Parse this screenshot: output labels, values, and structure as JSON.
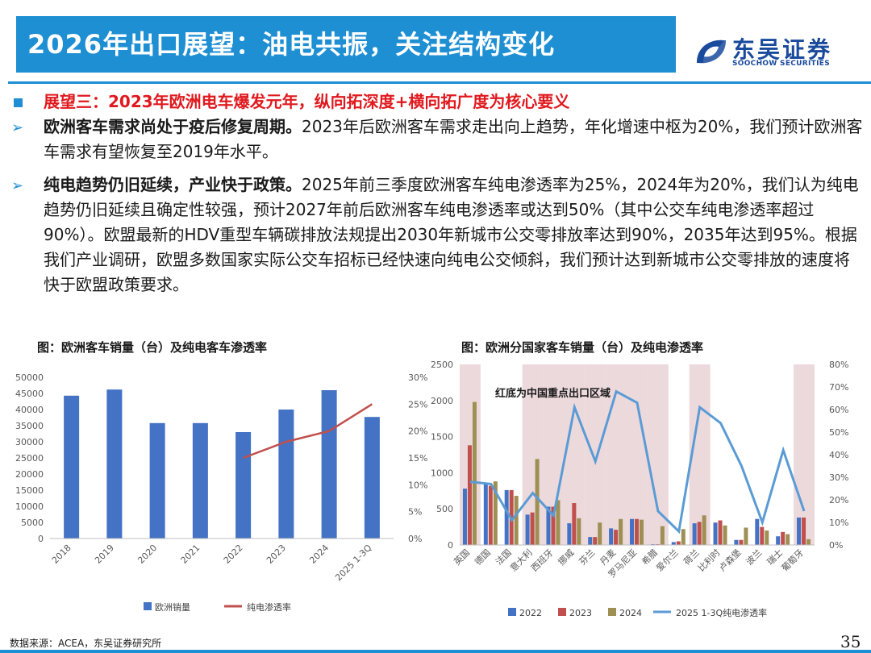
{
  "header": {
    "title": "2026年出口展望：油电共振，关注结构变化",
    "logo_cn": "东吴证券",
    "logo_en": "SOOCHOW SECURITIES"
  },
  "outlook": {
    "headline": "展望三：2023年欧洲电车爆发元年，纵向拓深度+横向拓广度为核心要义",
    "bullets": [
      {
        "lead": "欧洲客车需求尚处于疫后修复周期。",
        "body": "2023年后欧洲客车需求走出向上趋势，年化增速中枢为20%，我们预计欧洲客车需求有望恢复至2019年水平。"
      },
      {
        "lead": "纯电趋势仍旧延续，产业快于政策。",
        "body": "2025年前三季度欧洲客车纯电渗透率为25%，2024年为20%，我们认为纯电趋势仍旧延续且确定性较强，预计2027年前后欧洲客车纯电渗透率或达到50%（其中公交车纯电渗透率超过90%）。欧盟最新的HDV重型车辆碳排放法规提出2030年新城市公交零排放率达到90%，2035年达到95%。根据我们产业调研，欧盟多数国家实际公交车招标已经快速向纯电公交倾斜，我们预计达到新城市公交零排放的速度将快于欧盟政策要求。"
      }
    ]
  },
  "chart_data": [
    {
      "type": "bar",
      "title": "图：欧洲客车销量（台）及纯电客车渗透率",
      "categories": [
        "2018",
        "2019",
        "2020",
        "2021",
        "2022",
        "2023",
        "2024",
        "2025 1-3Q"
      ],
      "series": [
        {
          "name": "欧洲销量",
          "type": "bar",
          "axis": "left",
          "color": "#4472c4",
          "values": [
            44300,
            46200,
            35800,
            35800,
            33000,
            40000,
            46000,
            37700
          ]
        },
        {
          "name": "纯电渗透率",
          "type": "line",
          "axis": "right",
          "color": "#c0504d",
          "values": [
            null,
            null,
            null,
            null,
            0.15,
            0.18,
            0.2,
            0.25
          ]
        }
      ],
      "ylim": [
        0,
        50000
      ],
      "yticks": [
        "0",
        "5000",
        "10000",
        "15000",
        "20000",
        "25000",
        "30000",
        "35000",
        "40000",
        "45000",
        "50000"
      ],
      "y2lim": [
        0,
        0.3
      ],
      "y2ticks": [
        "0%",
        "5%",
        "10%",
        "15%",
        "20%",
        "25%",
        "30%"
      ],
      "grid": false,
      "legend_position": "bottom"
    },
    {
      "type": "bar",
      "title": "图：欧洲分国家客车销量（台）及纯电渗透率",
      "annotation": "红底为中国重点出口区域",
      "categories": [
        "英国",
        "德国",
        "法国",
        "意大利",
        "西班牙",
        "挪威",
        "芬兰",
        "丹麦",
        "罗马尼亚",
        "希腊",
        "爱尔兰",
        "荷兰",
        "比利时",
        "卢森堡",
        "波兰",
        "瑞士",
        "葡萄牙"
      ],
      "highlighted_categories": [
        "英国",
        "意大利",
        "西班牙",
        "挪威",
        "芬兰",
        "丹麦",
        "罗马尼亚",
        "希腊",
        "荷兰",
        "葡萄牙"
      ],
      "series": [
        {
          "name": "2022",
          "type": "bar",
          "axis": "left",
          "color": "#4472c4",
          "values": [
            780,
            850,
            760,
            420,
            530,
            300,
            110,
            230,
            360,
            10,
            40,
            300,
            310,
            70,
            360,
            120,
            380
          ]
        },
        {
          "name": "2023",
          "type": "bar",
          "axis": "left",
          "color": "#c0504d",
          "values": [
            1380,
            820,
            760,
            450,
            530,
            580,
            110,
            210,
            360,
            10,
            50,
            320,
            340,
            70,
            250,
            180,
            380
          ]
        },
        {
          "name": "2024",
          "type": "bar",
          "axis": "left",
          "color": "#9e8f53",
          "values": [
            1980,
            880,
            680,
            1190,
            620,
            370,
            310,
            360,
            350,
            260,
            220,
            410,
            270,
            240,
            200,
            150,
            80
          ]
        },
        {
          "name": "2025 1-3Q纯电渗透率",
          "type": "line",
          "axis": "right",
          "color": "#5b9bd5",
          "values": [
            0.28,
            0.27,
            0.11,
            0.23,
            0.13,
            0.61,
            0.37,
            0.68,
            0.63,
            0.15,
            0.06,
            0.61,
            0.54,
            0.35,
            0.1,
            0.42,
            0.15
          ]
        }
      ],
      "ylim": [
        0,
        2500
      ],
      "yticks": [
        "0",
        "500",
        "1000",
        "1500",
        "2000",
        "2500"
      ],
      "y2lim": [
        0,
        0.8
      ],
      "y2ticks": [
        "0%",
        "10%",
        "20%",
        "30%",
        "40%",
        "50%",
        "60%",
        "70%",
        "80%"
      ],
      "highlight_color": "#ecd9dc",
      "grid": false,
      "legend_position": "bottom"
    }
  ],
  "footer": {
    "source": "数据来源：ACEA，东吴证券研究所",
    "page": "35"
  }
}
